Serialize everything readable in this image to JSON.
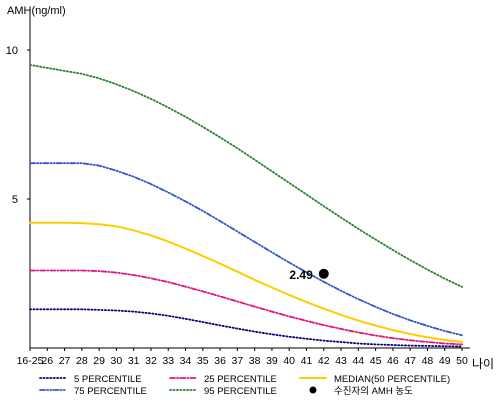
{
  "chart_data": {
    "type": "line",
    "title": "",
    "ylabel": "AMH(ng/ml)",
    "xlabel": "나이",
    "ylim": [
      0,
      11
    ],
    "yticks": [
      5,
      10
    ],
    "categories": [
      "16-25",
      "26",
      "27",
      "28",
      "29",
      "30",
      "31",
      "32",
      "33",
      "34",
      "35",
      "36",
      "37",
      "38",
      "39",
      "40",
      "41",
      "42",
      "43",
      "44",
      "45",
      "46",
      "47",
      "48",
      "49",
      "50"
    ],
    "series": [
      {
        "name": "5 PERCENTILE",
        "color": "#000080",
        "dash": "dotted",
        "values": [
          1.3,
          1.3,
          1.3,
          1.3,
          1.28,
          1.26,
          1.22,
          1.16,
          1.08,
          0.98,
          0.87,
          0.76,
          0.65,
          0.55,
          0.46,
          0.38,
          0.31,
          0.25,
          0.2,
          0.15,
          0.12,
          0.1,
          0.08,
          0.07,
          0.06,
          0.05
        ]
      },
      {
        "name": "25 PERCENTILE",
        "color": "#e0157f",
        "dash": "dashdot",
        "values": [
          2.6,
          2.6,
          2.6,
          2.6,
          2.58,
          2.53,
          2.45,
          2.34,
          2.21,
          2.06,
          1.9,
          1.73,
          1.56,
          1.39,
          1.22,
          1.06,
          0.91,
          0.77,
          0.64,
          0.52,
          0.42,
          0.33,
          0.26,
          0.2,
          0.15,
          0.12
        ]
      },
      {
        "name": "MEDIAN(50 PERCENTILE)",
        "color": "#ffcc00",
        "dash": "solid",
        "values": [
          4.2,
          4.2,
          4.2,
          4.19,
          4.15,
          4.08,
          3.95,
          3.78,
          3.57,
          3.34,
          3.09,
          2.83,
          2.56,
          2.29,
          2.03,
          1.78,
          1.54,
          1.32,
          1.11,
          0.92,
          0.75,
          0.6,
          0.47,
          0.36,
          0.27,
          0.2
        ]
      },
      {
        "name": "75 PERCENTILE",
        "color": "#3355cc",
        "dash": "dashdotdot",
        "values": [
          6.2,
          6.2,
          6.2,
          6.2,
          6.12,
          5.95,
          5.75,
          5.5,
          5.22,
          4.92,
          4.6,
          4.26,
          3.91,
          3.56,
          3.21,
          2.87,
          2.54,
          2.22,
          1.92,
          1.64,
          1.38,
          1.14,
          0.93,
          0.74,
          0.57,
          0.43
        ]
      },
      {
        "name": "95 PERCENTILE",
        "color": "#2e7d32",
        "dash": "dotted",
        "values": [
          9.5,
          9.4,
          9.3,
          9.2,
          9.05,
          8.85,
          8.62,
          8.36,
          8.07,
          7.76,
          7.42,
          7.07,
          6.7,
          6.32,
          5.93,
          5.54,
          5.15,
          4.76,
          4.38,
          4.0,
          3.64,
          3.29,
          2.95,
          2.63,
          2.33,
          2.05
        ]
      }
    ],
    "marker": {
      "label": "수진자의 AMH 농도",
      "x": "42",
      "y": 2.49,
      "value_label": "2.49",
      "color": "#000000"
    },
    "legend_position": "bottom",
    "grid": false
  }
}
